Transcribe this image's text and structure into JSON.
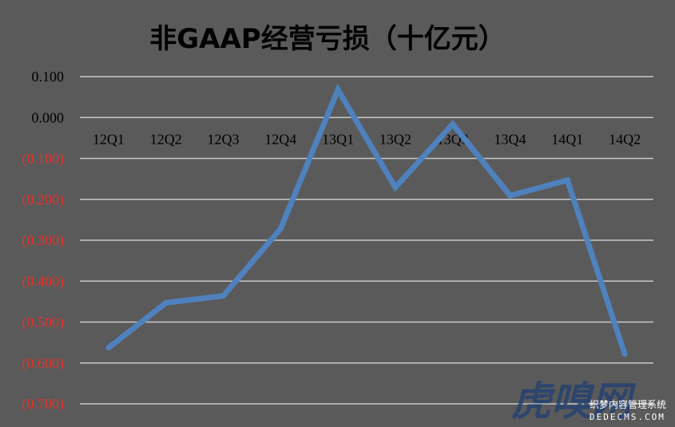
{
  "colors": {
    "background": "#5a5a5a",
    "gridline": "#c8c8c8",
    "series": "#4f81bd",
    "positive_tick": "#000000",
    "negative_tick": "#e8312a"
  },
  "watermark": {
    "main": "虎嗅网",
    "sub1": "织梦内容管理系统",
    "sub2": "DEDECMS.COM"
  },
  "chart_data": {
    "type": "line",
    "title": "非GAAP经营亏损（十亿元）",
    "xlabel": "",
    "ylabel": "",
    "categories": [
      "12Q1",
      "12Q2",
      "12Q3",
      "12Q4",
      "13Q1",
      "13Q2",
      "13Q3",
      "13Q4",
      "14Q1",
      "14Q2"
    ],
    "series": [
      {
        "values": [
          -0.563,
          -0.453,
          -0.436,
          -0.272,
          0.068,
          -0.171,
          -0.016,
          -0.191,
          -0.153,
          -0.578
        ]
      }
    ],
    "ylim": [
      -0.7,
      0.1
    ],
    "yticks": [
      0.1,
      0.0,
      -0.1,
      -0.2,
      -0.3,
      -0.4,
      -0.5,
      -0.6,
      -0.7
    ],
    "ytick_labels": [
      "0.100",
      "0.000",
      "(0.100)",
      "(0.200)",
      "(0.300)",
      "(0.400)",
      "(0.500)",
      "(0.600)",
      "(0.700)"
    ],
    "grid": true,
    "legend": "none"
  }
}
